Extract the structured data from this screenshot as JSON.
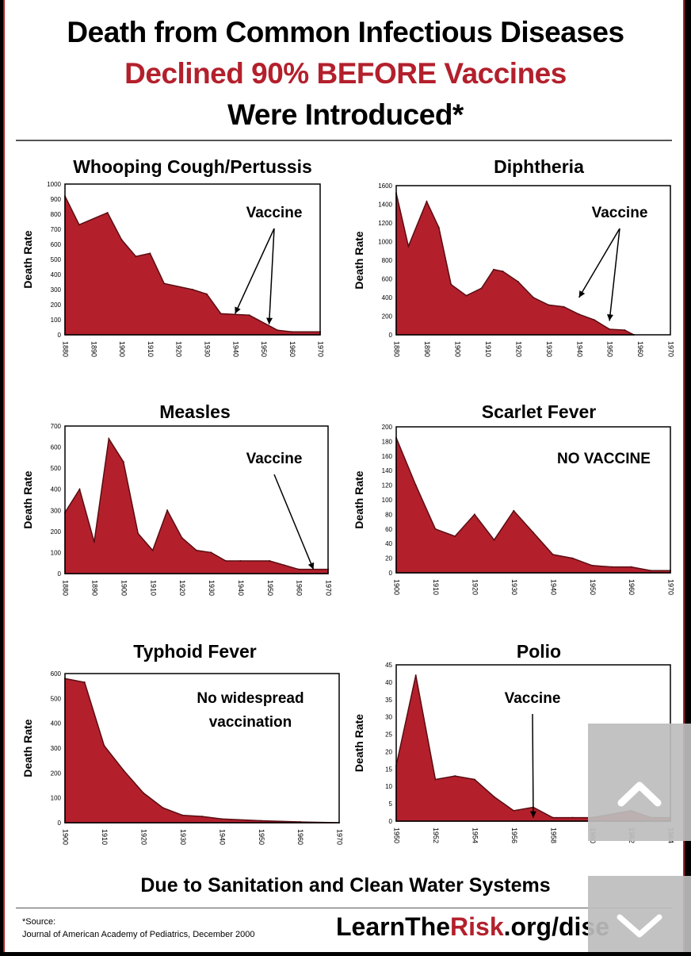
{
  "header": {
    "line1": "Death from Common Infectious Diseases",
    "line2": "Declined 90% BEFORE Vaccines",
    "line3": "Were Introduced*"
  },
  "footer": {
    "tagline": "Due to Sanitation and Clean Water Systems",
    "source_label": "*Source:",
    "source_text": "Journal of American Academy of Pediatrics, December 2000",
    "url_prefix": "LearnThe",
    "url_highlight": "Risk",
    "url_suffix": ".org/dise"
  },
  "colors": {
    "fill": "#b3202c",
    "accent_text": "#b3202c"
  },
  "icons": {
    "scroll_up": "chevron-up-icon",
    "scroll_down": "chevron-down-icon"
  },
  "chart_data": [
    {
      "type": "area",
      "title": "Whooping Cough/Pertussis",
      "ylabel": "Death Rate",
      "xlabel": "",
      "x": [
        1880,
        1885,
        1895,
        1900,
        1905,
        1910,
        1915,
        1925,
        1930,
        1935,
        1945,
        1955,
        1960,
        1970
      ],
      "values": [
        920,
        730,
        810,
        630,
        520,
        540,
        340,
        300,
        270,
        140,
        130,
        30,
        20,
        20
      ],
      "xlim": [
        1880,
        1970
      ],
      "ylim": [
        0,
        1000
      ],
      "xticks": [
        1880,
        1890,
        1900,
        1910,
        1920,
        1930,
        1940,
        1950,
        1960,
        1970
      ],
      "yticks": [
        0,
        100,
        200,
        300,
        400,
        500,
        600,
        700,
        800,
        900,
        1000
      ],
      "annotation": {
        "text": "Vaccine",
        "arrows_to": [
          [
            1940,
            140
          ],
          [
            1952,
            70
          ]
        ]
      }
    },
    {
      "type": "area",
      "title": "Diphtheria",
      "ylabel": "Death Rate",
      "xlabel": "",
      "x": [
        1880,
        1884,
        1890,
        1894,
        1898,
        1903,
        1908,
        1912,
        1915,
        1920,
        1925,
        1930,
        1935,
        1940,
        1945,
        1950,
        1955,
        1958
      ],
      "values": [
        1520,
        950,
        1430,
        1150,
        540,
        420,
        500,
        700,
        680,
        570,
        400,
        320,
        300,
        220,
        160,
        60,
        50,
        0
      ],
      "xlim": [
        1880,
        1970
      ],
      "ylim": [
        0,
        1600
      ],
      "xticks": [
        1880,
        1890,
        1900,
        1910,
        1920,
        1930,
        1940,
        1950,
        1960,
        1970
      ],
      "yticks": [
        0,
        200,
        400,
        600,
        800,
        1000,
        1200,
        1400,
        1600
      ],
      "annotation": {
        "text": "Vaccine",
        "arrows_to": [
          [
            1940,
            400
          ],
          [
            1950,
            150
          ]
        ]
      }
    },
    {
      "type": "area",
      "title": "Measles",
      "ylabel": "Death Rate",
      "xlabel": "",
      "x": [
        1880,
        1885,
        1890,
        1895,
        1900,
        1905,
        1910,
        1915,
        1920,
        1925,
        1930,
        1935,
        1940,
        1950,
        1955,
        1960,
        1970
      ],
      "values": [
        290,
        400,
        150,
        640,
        530,
        190,
        110,
        300,
        170,
        110,
        100,
        60,
        60,
        60,
        40,
        20,
        20
      ],
      "xlim": [
        1880,
        1970
      ],
      "ylim": [
        0,
        700
      ],
      "xticks": [
        1880,
        1890,
        1900,
        1910,
        1920,
        1930,
        1940,
        1950,
        1960,
        1970
      ],
      "yticks": [
        0,
        100,
        200,
        300,
        400,
        500,
        600,
        700
      ],
      "annotation": {
        "text": "Vaccine",
        "arrows_to": [
          [
            1965,
            20
          ]
        ]
      }
    },
    {
      "type": "area",
      "title": "Scarlet Fever",
      "ylabel": "Death Rate",
      "xlabel": "",
      "x": [
        1900,
        1905,
        1910,
        1915,
        1920,
        1925,
        1930,
        1935,
        1940,
        1945,
        1950,
        1955,
        1960,
        1965,
        1970
      ],
      "values": [
        185,
        120,
        60,
        50,
        80,
        45,
        85,
        55,
        25,
        20,
        10,
        8,
        8,
        3,
        3
      ],
      "xlim": [
        1900,
        1970
      ],
      "ylim": [
        0,
        200
      ],
      "xticks": [
        1900,
        1910,
        1920,
        1930,
        1940,
        1950,
        1960,
        1970
      ],
      "yticks": [
        0,
        20,
        40,
        60,
        80,
        100,
        120,
        140,
        160,
        180,
        200
      ],
      "annotation": {
        "text": "NO VACCINE",
        "arrows_to": []
      }
    },
    {
      "type": "area",
      "title": "Typhoid Fever",
      "ylabel": "Death Rate",
      "xlabel": "",
      "x": [
        1900,
        1905,
        1910,
        1915,
        1920,
        1925,
        1930,
        1935,
        1940,
        1950,
        1960,
        1970
      ],
      "values": [
        580,
        565,
        310,
        210,
        120,
        60,
        30,
        25,
        15,
        8,
        3,
        0
      ],
      "xlim": [
        1900,
        1970
      ],
      "ylim": [
        0,
        600
      ],
      "xticks": [
        1900,
        1910,
        1920,
        1930,
        1940,
        1950,
        1960,
        1970
      ],
      "yticks": [
        0,
        100,
        200,
        300,
        400,
        500,
        600
      ],
      "annotation": {
        "text": "No widespread\nvaccination",
        "arrows_to": []
      }
    },
    {
      "type": "area",
      "title": "Polio",
      "ylabel": "Death Rate",
      "xlabel": "",
      "x": [
        1950,
        1951,
        1952,
        1953,
        1954,
        1955,
        1956,
        1957,
        1958,
        1959,
        1960,
        1961,
        1962,
        1963,
        1964
      ],
      "values": [
        16,
        42,
        12,
        13,
        12,
        7,
        3,
        4,
        1,
        1,
        1,
        2,
        3,
        1,
        1
      ],
      "xlim": [
        1950,
        1964
      ],
      "ylim": [
        0,
        45
      ],
      "xticks": [
        1950,
        1952,
        1954,
        1956,
        1958,
        1960,
        1962,
        1964
      ],
      "yticks": [
        0,
        5,
        10,
        15,
        20,
        25,
        30,
        35,
        40,
        45
      ],
      "annotation": {
        "text": "Vaccine",
        "arrows_to": [
          [
            1957,
            1
          ]
        ]
      }
    }
  ]
}
